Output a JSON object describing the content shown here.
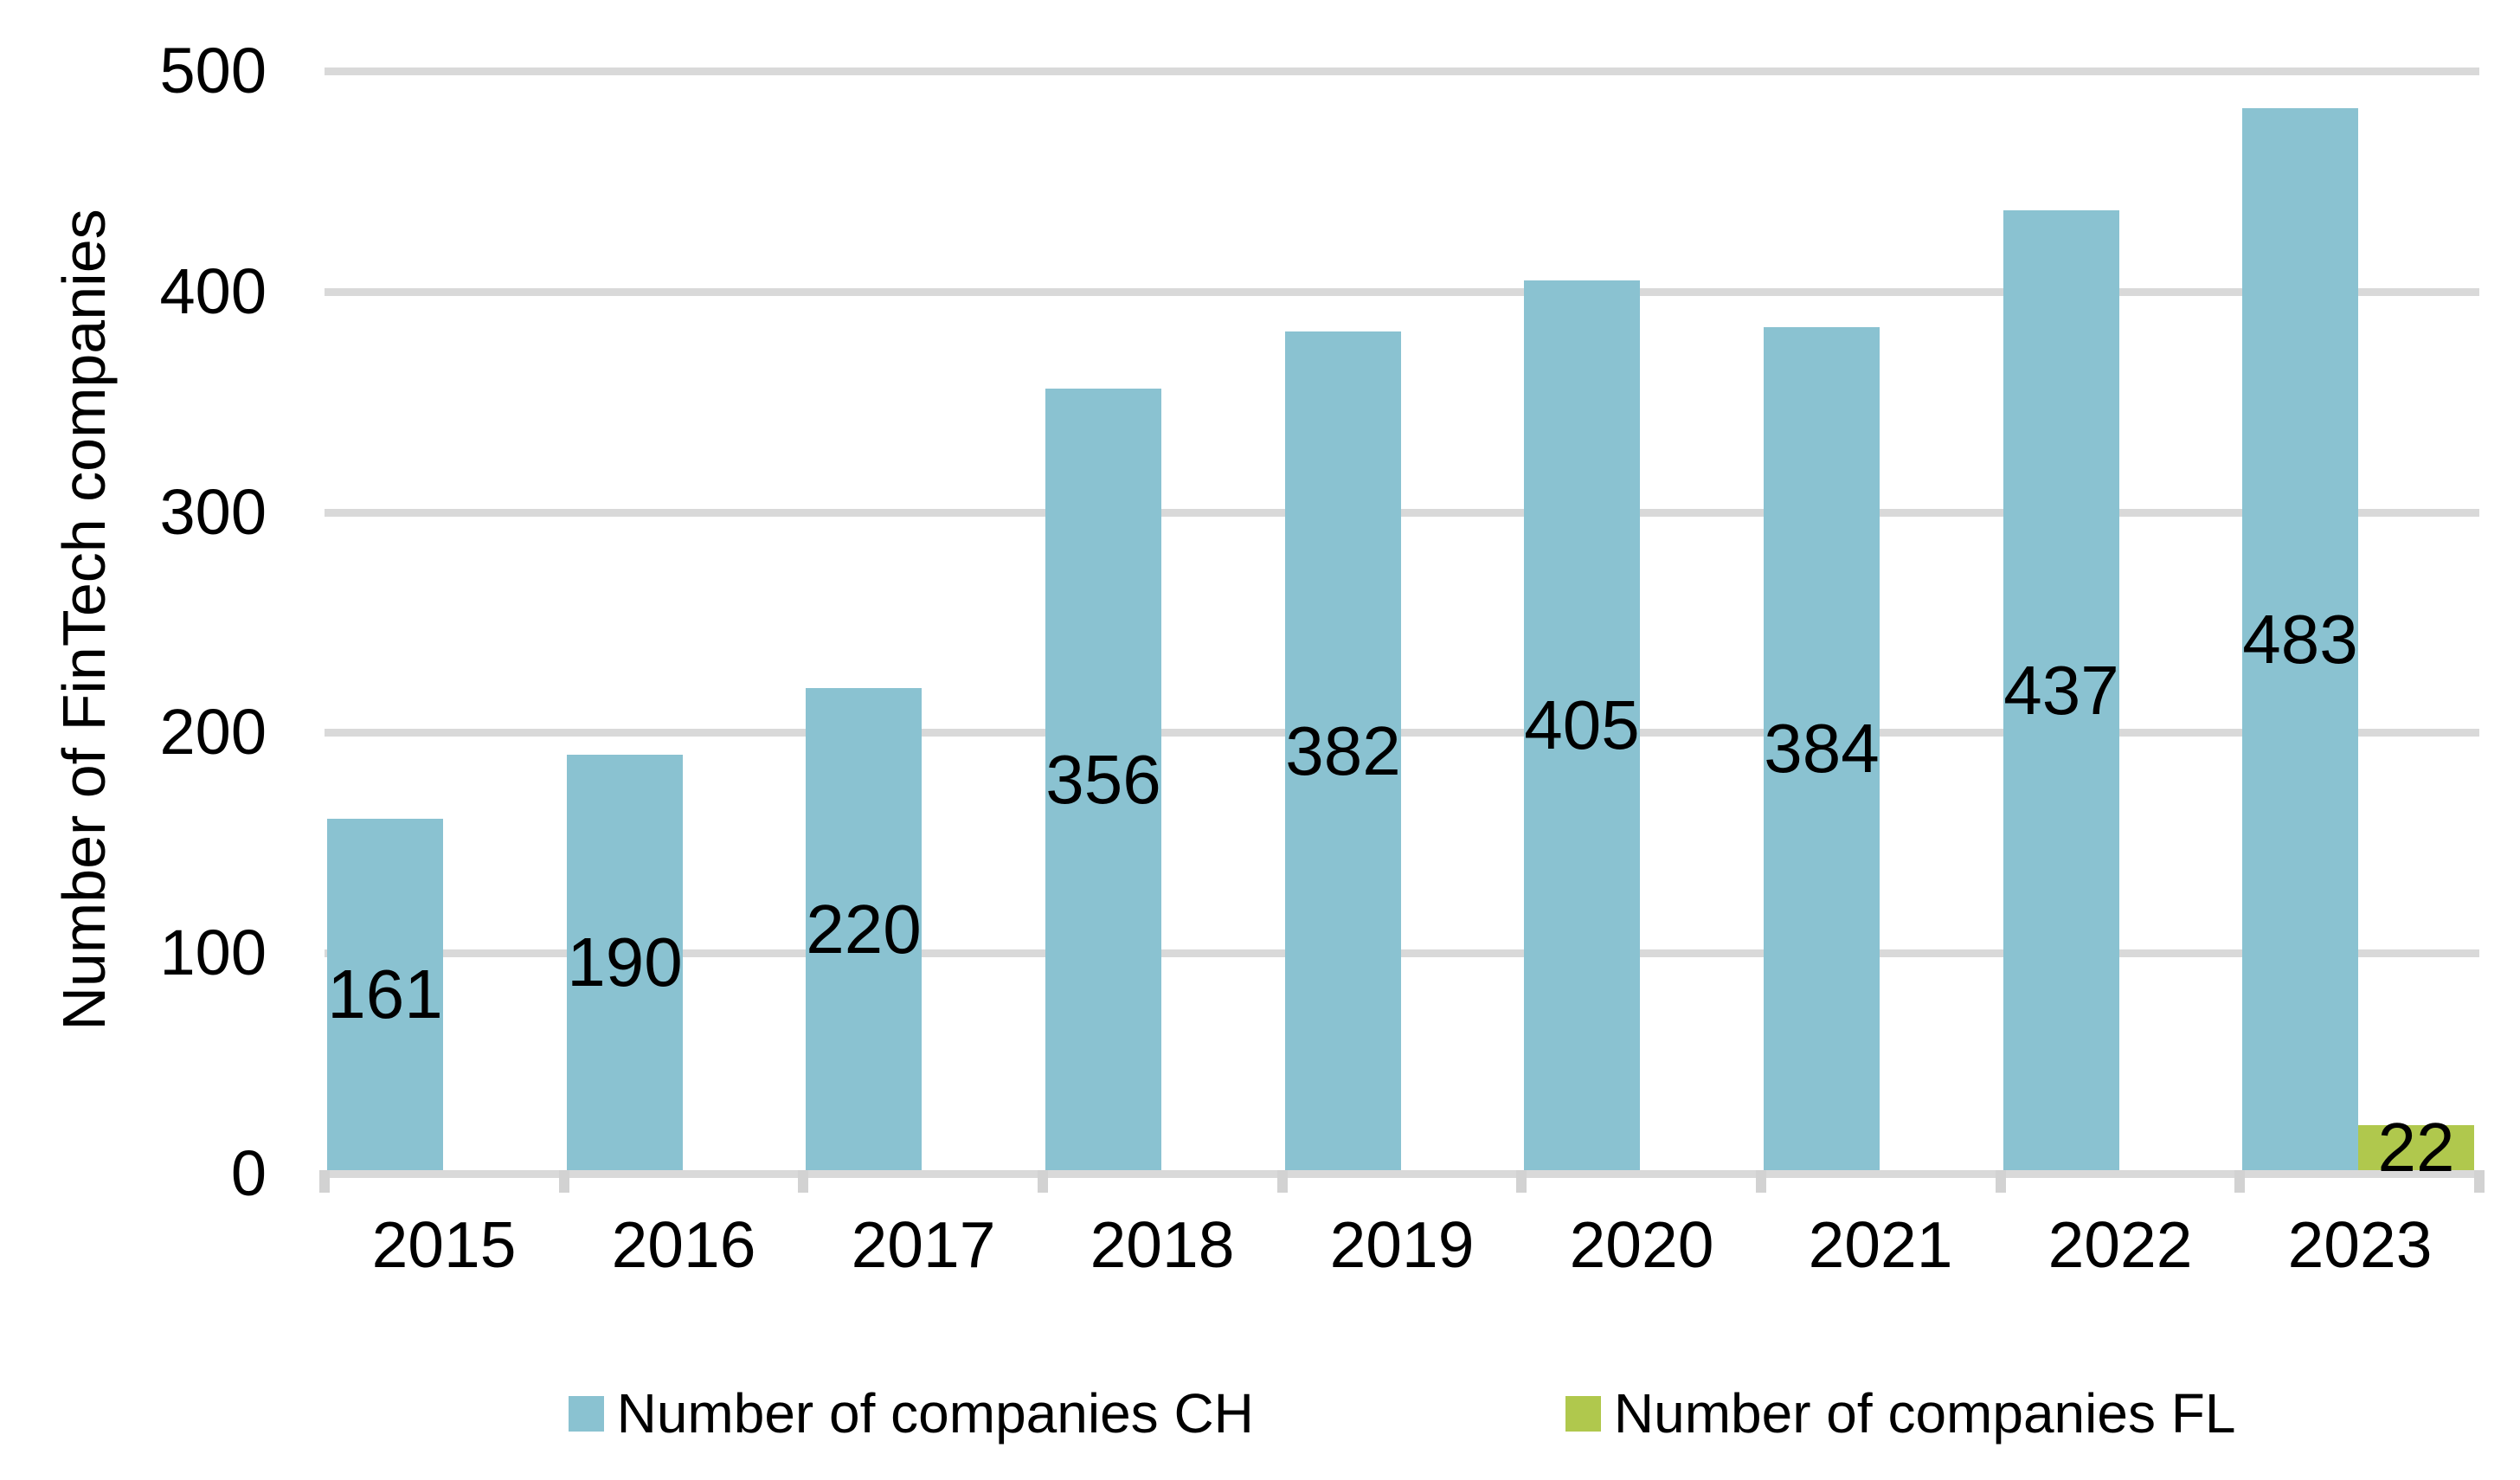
{
  "chart_data": {
    "type": "bar",
    "title": "",
    "ylabel": "Number of FinTech companies",
    "xlabel": "",
    "categories": [
      "2015",
      "2016",
      "2017",
      "2018",
      "2019",
      "2020",
      "2021",
      "2022",
      "2023"
    ],
    "series": [
      {
        "name": "Number of companies CH",
        "color": "#8AC2D1",
        "values": [
          161,
          190,
          220,
          356,
          382,
          405,
          384,
          437,
          483
        ]
      },
      {
        "name": "Number of companies FL",
        "color": "#B0C84D",
        "values": [
          null,
          null,
          null,
          null,
          null,
          null,
          null,
          null,
          22
        ]
      }
    ],
    "ylim": [
      0,
      500
    ],
    "yticks": [
      0,
      100,
      200,
      300,
      400,
      500
    ],
    "grid": "horizontal",
    "gridline_color": "#D9D9D9",
    "axis_line_color": "#D9D9D9",
    "tick_mark_color": "#D2D2D2",
    "label_color": "#000000",
    "data_labels": "center-of-bar",
    "legend_position": "bottom"
  }
}
